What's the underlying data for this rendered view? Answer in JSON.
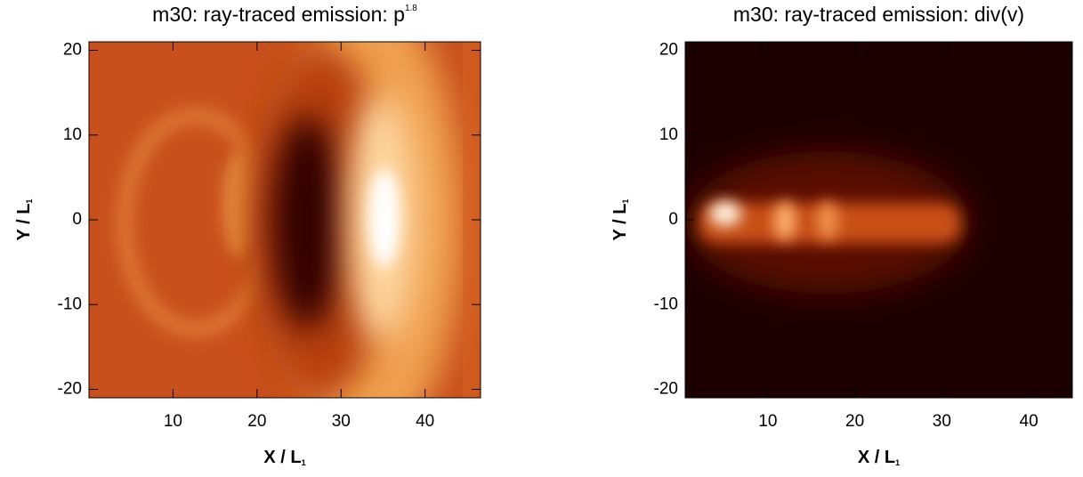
{
  "chart_data": [
    {
      "type": "image",
      "title": "m30: ray-traced emission: p",
      "title_superscript": "1.8",
      "xlabel": "X / L",
      "xlabel_subscript": "1",
      "ylabel": "Y / L",
      "ylabel_subscript": "1",
      "xlim": [
        0,
        46.6
      ],
      "ylim": [
        -21,
        21
      ],
      "xticks": [
        10,
        20,
        30,
        40
      ],
      "yticks": [
        -20,
        -10,
        0,
        10,
        20
      ]
    },
    {
      "type": "image",
      "title": "m30: ray-traced emission: div(v)",
      "xlabel": "X / L",
      "xlabel_subscript": "1",
      "ylabel": "Y / L",
      "ylabel_subscript": "1",
      "xlim": [
        0.5,
        45
      ],
      "ylim": [
        -21,
        21
      ],
      "xticks": [
        10,
        20,
        30,
        40
      ],
      "yticks": [
        -20,
        -10,
        0,
        10,
        20
      ]
    }
  ]
}
